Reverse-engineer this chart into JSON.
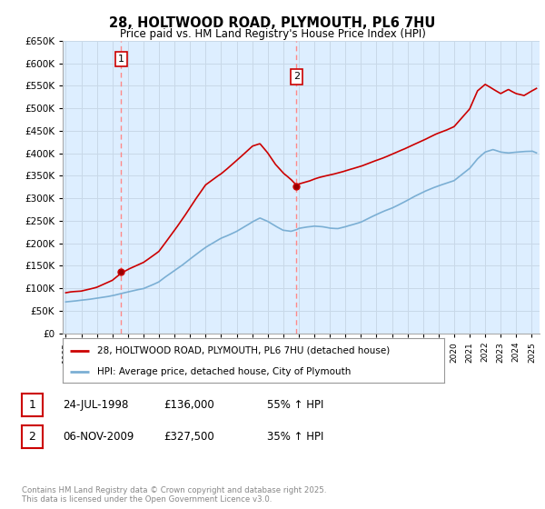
{
  "title": "28, HOLTWOOD ROAD, PLYMOUTH, PL6 7HU",
  "subtitle": "Price paid vs. HM Land Registry's House Price Index (HPI)",
  "ytick_values": [
    0,
    50000,
    100000,
    150000,
    200000,
    250000,
    300000,
    350000,
    400000,
    450000,
    500000,
    550000,
    600000,
    650000
  ],
  "ylim": [
    0,
    650000
  ],
  "xlim_start": 1994.8,
  "xlim_end": 2025.5,
  "purchase1_year": 1998.56,
  "purchase1_price": 136000,
  "purchase2_year": 2009.85,
  "purchase2_price": 327500,
  "red_line_color": "#cc0000",
  "blue_line_color": "#7bafd4",
  "dashed_line_color": "#ff8888",
  "grid_color": "#c8d8e8",
  "bg_chart_color": "#ddeeff",
  "background_color": "#ffffff",
  "legend_label_red": "28, HOLTWOOD ROAD, PLYMOUTH, PL6 7HU (detached house)",
  "legend_label_blue": "HPI: Average price, detached house, City of Plymouth",
  "footer": "Contains HM Land Registry data © Crown copyright and database right 2025.\nThis data is licensed under the Open Government Licence v3.0.",
  "table_rows": [
    {
      "num": "1",
      "date": "24-JUL-1998",
      "price": "£136,000",
      "change": "55% ↑ HPI"
    },
    {
      "num": "2",
      "date": "06-NOV-2009",
      "price": "£327,500",
      "change": "35% ↑ HPI"
    }
  ]
}
